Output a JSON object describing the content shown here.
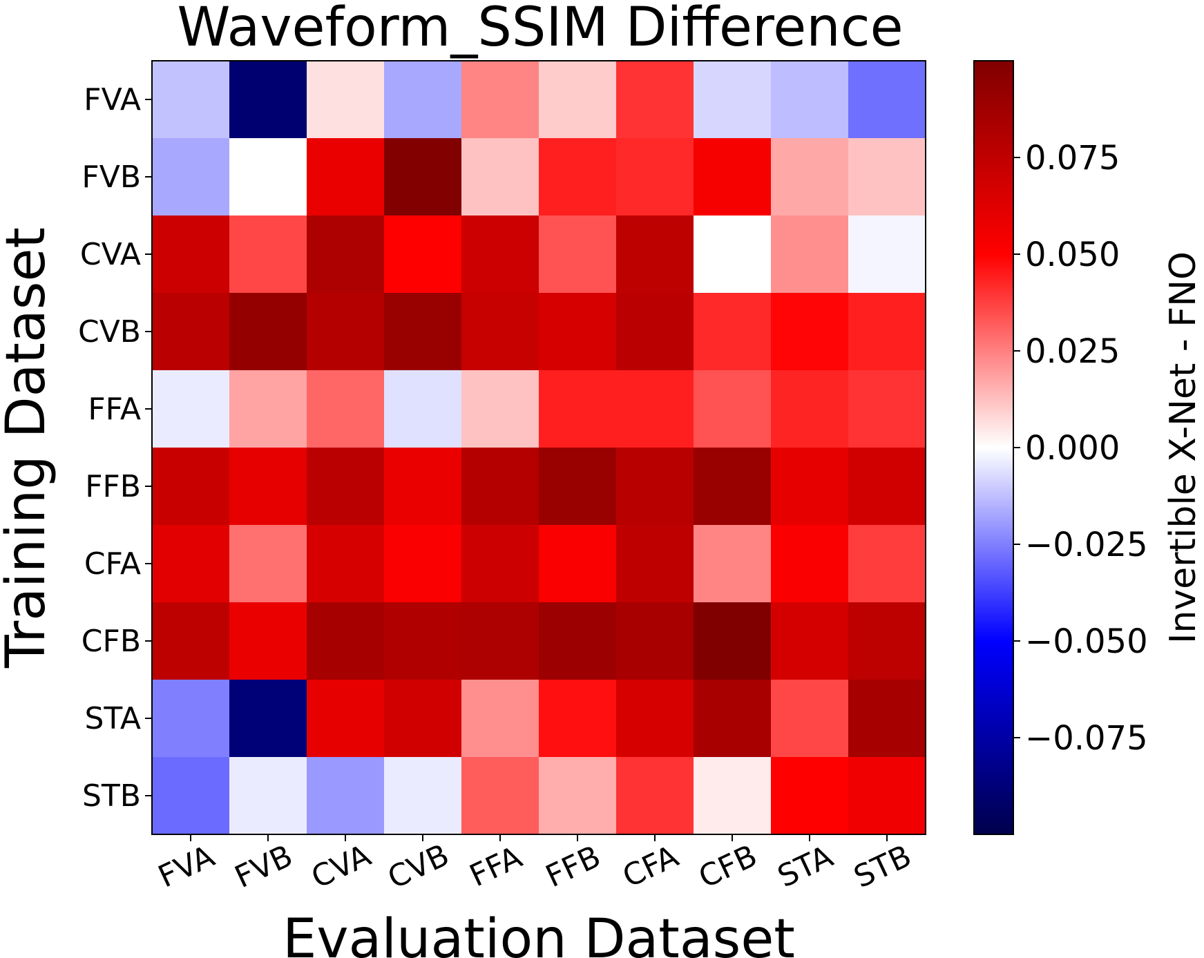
{
  "chart_data": {
    "type": "heatmap",
    "title": "Waveform_SSIM Difference",
    "xlabel": "Evaluation Dataset",
    "ylabel": "Training Dataset",
    "x_categories": [
      "FVA",
      "FVB",
      "CVA",
      "CVB",
      "FFA",
      "FFB",
      "CFA",
      "CFB",
      "STA",
      "STB"
    ],
    "y_categories": [
      "FVA",
      "FVB",
      "CVA",
      "CVB",
      "FFA",
      "FFB",
      "CFA",
      "CFB",
      "STA",
      "STB"
    ],
    "values": [
      [
        -0.012,
        -0.09,
        0.006,
        -0.017,
        0.024,
        0.01,
        0.04,
        -0.008,
        -0.013,
        -0.028
      ],
      [
        -0.017,
        0.0,
        0.058,
        0.099,
        0.012,
        0.044,
        0.042,
        0.053,
        0.017,
        0.012
      ],
      [
        0.07,
        0.036,
        0.082,
        0.05,
        0.07,
        0.034,
        0.076,
        0.0,
        0.022,
        -0.002
      ],
      [
        0.077,
        0.092,
        0.079,
        0.09,
        0.072,
        0.066,
        0.077,
        0.042,
        0.049,
        0.044
      ],
      [
        -0.004,
        0.018,
        0.03,
        -0.006,
        0.012,
        0.044,
        0.044,
        0.034,
        0.043,
        0.04
      ],
      [
        0.071,
        0.06,
        0.077,
        0.058,
        0.079,
        0.09,
        0.078,
        0.09,
        0.06,
        0.068
      ],
      [
        0.061,
        0.028,
        0.066,
        0.052,
        0.07,
        0.052,
        0.075,
        0.024,
        0.052,
        0.038
      ],
      [
        0.076,
        0.058,
        0.085,
        0.081,
        0.082,
        0.089,
        0.084,
        0.1,
        0.067,
        0.076
      ],
      [
        -0.025,
        -0.088,
        0.06,
        0.068,
        0.022,
        0.047,
        0.066,
        0.084,
        0.036,
        0.085
      ],
      [
        -0.029,
        -0.004,
        -0.02,
        -0.004,
        0.032,
        0.016,
        0.04,
        0.004,
        0.05,
        0.056
      ]
    ],
    "colormap": "seismic",
    "vmin": -0.1,
    "vmax": 0.1,
    "colorbar": {
      "label": "Invertible X-Net - FNO",
      "ticks": [
        0.075,
        0.05,
        0.025,
        0.0,
        -0.025,
        -0.05,
        -0.075
      ],
      "tick_labels": [
        "0.075",
        "0.050",
        "0.025",
        "0.000",
        "−0.025",
        "−0.050",
        "−0.075"
      ]
    }
  }
}
